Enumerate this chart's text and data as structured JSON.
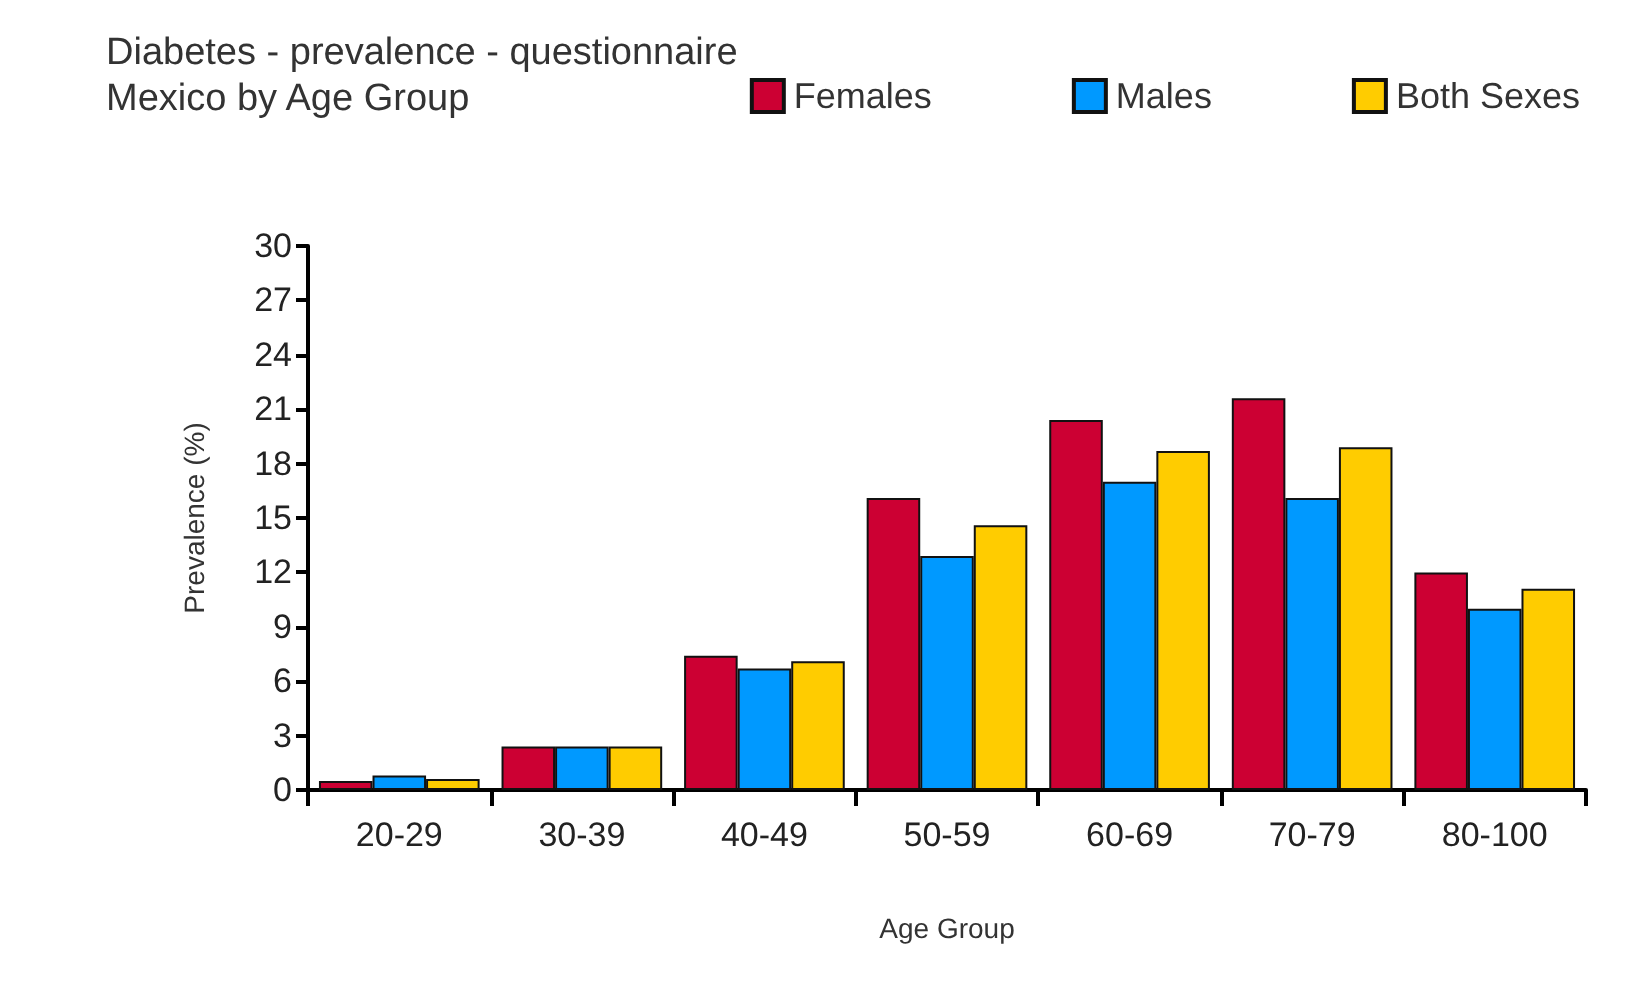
{
  "chart_data": {
    "type": "bar",
    "title": "Diabetes - prevalence - questionnaire",
    "subtitle": "Mexico by Age Group",
    "xlabel": "Age Group",
    "ylabel": "Prevalence (%)",
    "categories": [
      "20-29",
      "30-39",
      "40-49",
      "50-59",
      "60-69",
      "70-79",
      "80-100"
    ],
    "series": [
      {
        "name": "Females",
        "color": "#cc0033",
        "values": [
          0.5,
          2.4,
          7.4,
          16.1,
          20.4,
          21.6,
          12.0
        ]
      },
      {
        "name": "Males",
        "color": "#0099ff",
        "values": [
          0.8,
          2.4,
          6.7,
          12.9,
          17.0,
          16.1,
          10.0
        ]
      },
      {
        "name": "Both Sexes",
        "color": "#ffcc00",
        "values": [
          0.6,
          2.4,
          7.1,
          14.6,
          18.7,
          18.9,
          11.1
        ]
      }
    ],
    "ylim": [
      0,
      30
    ],
    "yticks": [
      0,
      3,
      6,
      9,
      12,
      15,
      18,
      21,
      24,
      27,
      30
    ],
    "grid": false,
    "legend": "top right"
  }
}
